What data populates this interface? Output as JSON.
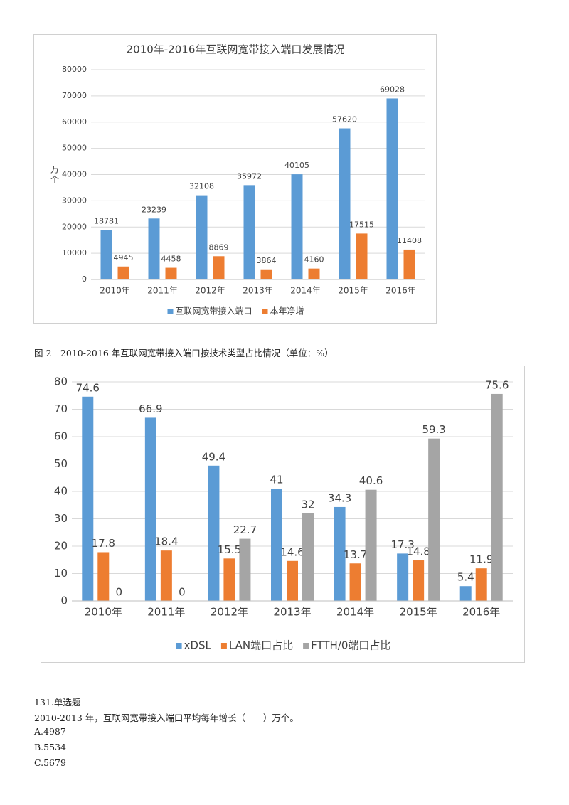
{
  "chart_data": [
    {
      "type": "bar",
      "title": "2010年-2016年互联网宽带接入端口发展情况",
      "y_label": "万个",
      "categories": [
        "2010年",
        "2011年",
        "2012年",
        "2013年",
        "2014年",
        "2015年",
        "2016年"
      ],
      "series": [
        {
          "name": "互联网宽带接入端口",
          "color": "#5b9bd5",
          "values": [
            18781,
            23239,
            32108,
            35972,
            40105,
            57620,
            69028
          ]
        },
        {
          "name": "本年净增",
          "color": "#ed7d31",
          "values": [
            4945,
            4458,
            8869,
            3864,
            4160,
            17515,
            11408
          ]
        }
      ],
      "ylim": [
        0,
        80000
      ],
      "yticks": [
        0,
        10000,
        20000,
        30000,
        40000,
        50000,
        60000,
        70000,
        80000
      ],
      "grid": true,
      "legend": "bottom"
    },
    {
      "type": "bar",
      "categories": [
        "2010年",
        "2011年",
        "2012年",
        "2013年",
        "2014年",
        "2015年",
        "2016年"
      ],
      "series": [
        {
          "name": "xDSL",
          "color": "#5b9bd5",
          "values": [
            74.6,
            66.9,
            49.4,
            41,
            34.3,
            17.3,
            5.4
          ]
        },
        {
          "name": "LAN端口占比",
          "color": "#ed7d31",
          "values": [
            17.8,
            18.4,
            15.5,
            14.6,
            13.7,
            14.8,
            11.9
          ]
        },
        {
          "name": "FTTH/0端口占比",
          "color": "#a5a5a5",
          "values": [
            0,
            0,
            22.7,
            32,
            40.6,
            59.3,
            75.6
          ]
        }
      ],
      "ylim": [
        0,
        80
      ],
      "yticks": [
        0,
        10,
        20,
        30,
        40,
        50,
        60,
        70,
        80
      ],
      "grid": true,
      "legend": "bottom"
    }
  ],
  "caption": "图 2　2010-2016 年互联网宽带接入端口按技术类型占比情况（单位：%）",
  "question": {
    "number": "131.单选题",
    "stem": "2010-2013 年，互联网宽带接入端口平均每年增长（　　）万个。",
    "options": [
      "A.4987",
      "B.5534",
      "C.5679"
    ]
  }
}
